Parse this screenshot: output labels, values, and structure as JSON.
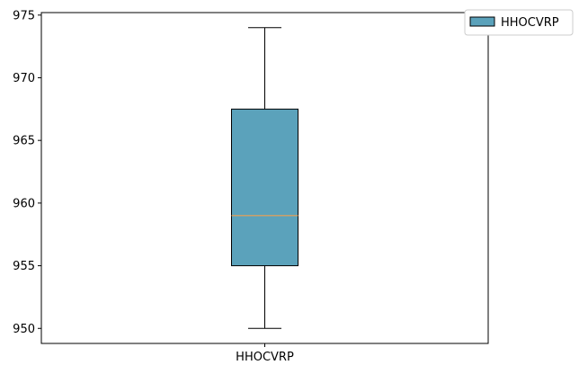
{
  "chart_data": {
    "type": "box",
    "categories": [
      "HHOCVRP"
    ],
    "series": [
      {
        "name": "HHOCVRP",
        "whisker_low": 950,
        "q1": 955,
        "median": 959,
        "q3": 967.5,
        "whisker_high": 974,
        "color": "#5ba2bb",
        "median_color": "#f0a050"
      }
    ],
    "title": "",
    "xlabel": "",
    "ylabel": "",
    "ylim": [
      948.8,
      975.2
    ],
    "yticks": [
      950,
      955,
      960,
      965,
      970,
      975
    ],
    "ytick_labels": [
      "950",
      "955",
      "960",
      "965",
      "970",
      "975"
    ],
    "grid": false,
    "legend": {
      "placement": "top-right outside",
      "entries": [
        "HHOCVRP"
      ]
    }
  }
}
